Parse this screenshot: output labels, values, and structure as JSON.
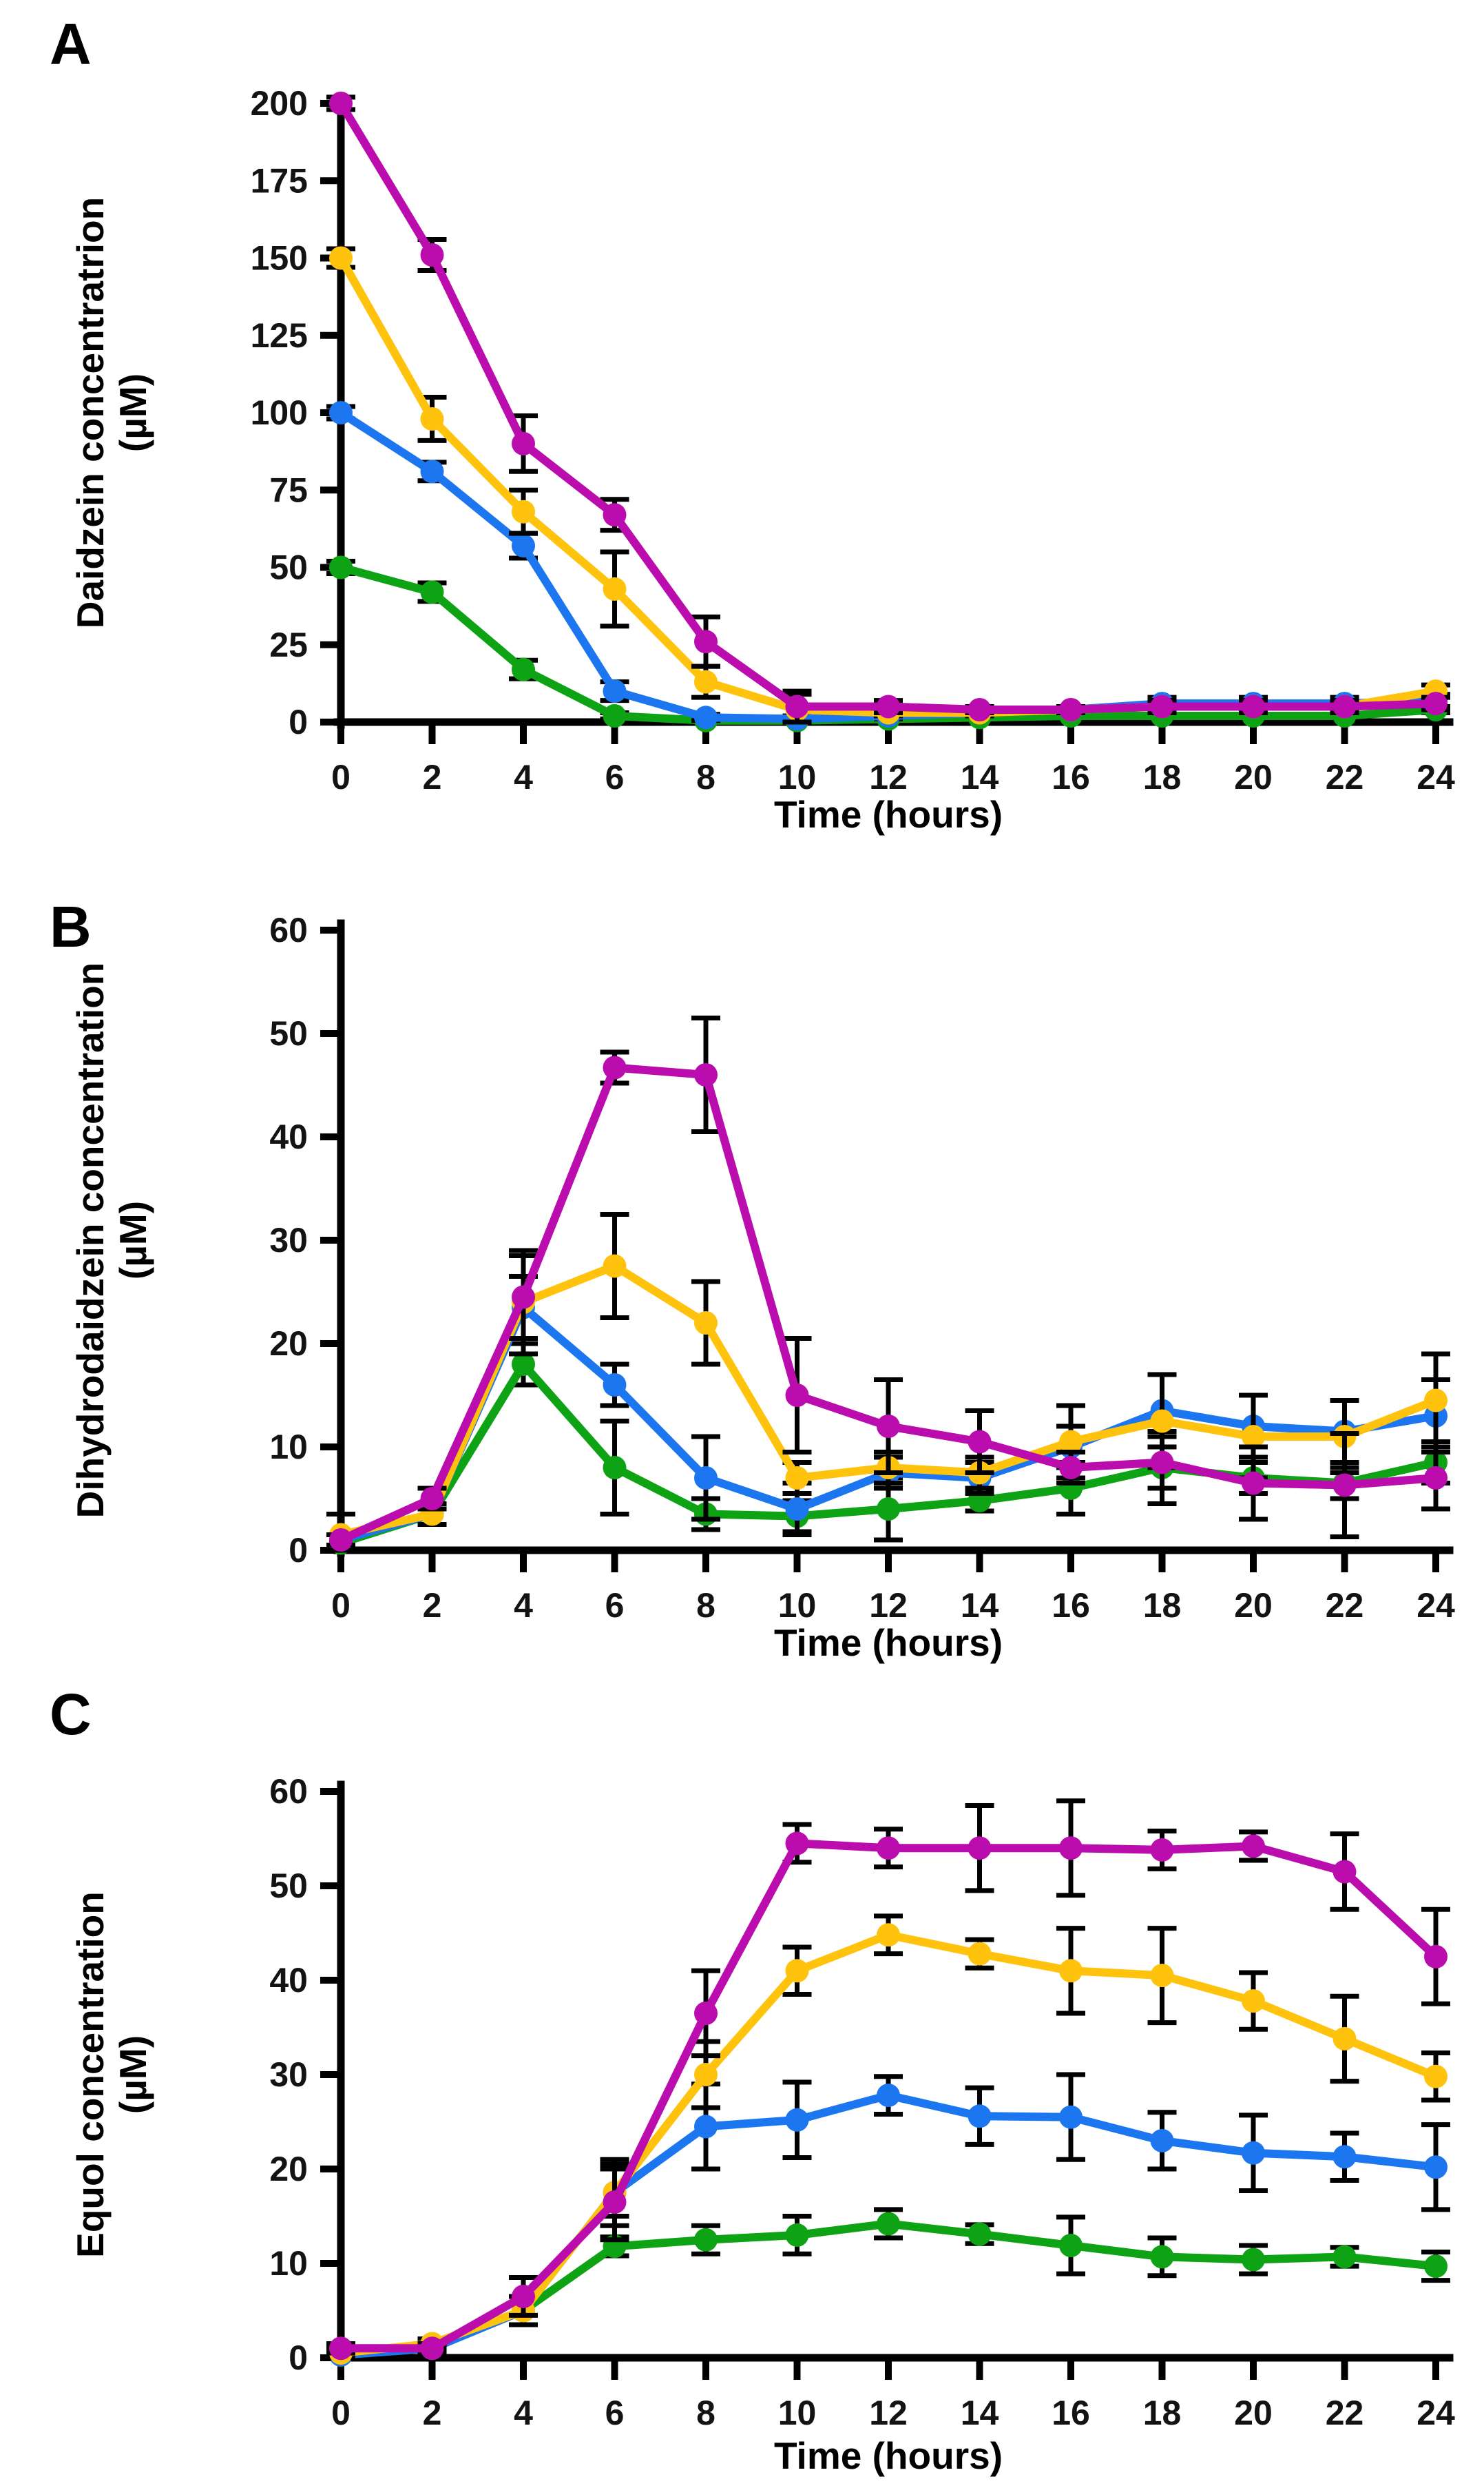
{
  "chart_data": [
    {
      "panel_letter": "A",
      "type": "line",
      "ylabel": "Daidzein concentratrion",
      "ylabel_unit": "(µM)",
      "xlabel": "Time (hours)",
      "x": [
        0,
        2,
        4,
        6,
        8,
        10,
        12,
        14,
        16,
        18,
        20,
        22,
        24
      ],
      "xlim": [
        0,
        24
      ],
      "xtick_step": 2,
      "ylim": [
        0,
        200
      ],
      "ytick_step": 25,
      "grid": false,
      "legend": "none",
      "series": [
        {
          "name": "green",
          "color": "#0DA314",
          "values": [
            50,
            42,
            17,
            2,
            0.5,
            0.5,
            1,
            1.5,
            2,
            2,
            2,
            2,
            4
          ],
          "errors": [
            2,
            3,
            3,
            1,
            0.5,
            0.5,
            0.5,
            0.5,
            1,
            1,
            1,
            1,
            1
          ]
        },
        {
          "name": "blue",
          "color": "#1C76F0",
          "values": [
            100,
            81,
            57,
            10,
            1.5,
            1,
            2,
            3,
            4,
            6,
            6,
            6,
            7
          ],
          "errors": [
            2,
            3,
            4,
            3,
            1,
            1,
            1,
            1,
            1,
            2,
            2,
            2,
            2
          ]
        },
        {
          "name": "yellow",
          "color": "#FFC30D",
          "values": [
            150,
            98,
            68,
            43,
            13,
            4,
            3,
            3,
            4,
            5,
            5,
            5,
            10
          ],
          "errors": [
            3,
            7,
            7,
            12,
            5,
            5,
            1,
            1,
            1,
            2,
            2,
            2,
            2
          ]
        },
        {
          "name": "magenta",
          "color": "#BB0CAE",
          "values": [
            200,
            151,
            90,
            67,
            26,
            5,
            5,
            4,
            4,
            5,
            5,
            5,
            6
          ],
          "errors": [
            2,
            5,
            9,
            5,
            8,
            5,
            2,
            1,
            1,
            2,
            2,
            2,
            2
          ]
        }
      ]
    },
    {
      "panel_letter": "B",
      "type": "line",
      "ylabel": "Dihydrodaidzein concentration",
      "ylabel_unit": "(µM)",
      "xlabel": "Time (hours)",
      "x": [
        0,
        2,
        4,
        6,
        8,
        10,
        12,
        14,
        16,
        18,
        20,
        22,
        24
      ],
      "xlim": [
        0,
        24
      ],
      "xtick_step": 2,
      "ylim": [
        0,
        60
      ],
      "ytick_step": 10,
      "grid": false,
      "legend": "none",
      "series": [
        {
          "name": "green",
          "color": "#0DA314",
          "values": [
            0.7,
            3.5,
            18,
            8,
            3.5,
            3.3,
            4,
            4.8,
            6,
            8,
            7,
            6.5,
            8.5
          ],
          "errors": [
            0.3,
            1,
            2,
            4.5,
            1.5,
            1.5,
            3,
            1,
            2.5,
            3.5,
            1.5,
            1.5,
            2
          ]
        },
        {
          "name": "blue",
          "color": "#1C76F0",
          "values": [
            1,
            3.5,
            23.5,
            16,
            7,
            4,
            7.5,
            7,
            10,
            13.5,
            12,
            11.5,
            13
          ],
          "errors": [
            0.5,
            1,
            3,
            2,
            4,
            2.5,
            1.5,
            1.5,
            2,
            3.5,
            3,
            3,
            3.5
          ]
        },
        {
          "name": "yellow",
          "color": "#FFC30D",
          "values": [
            1.5,
            3.5,
            24,
            27.5,
            22,
            7,
            8,
            7.5,
            10.5,
            12.5,
            11,
            11,
            14.5
          ],
          "errors": [
            2,
            1,
            5,
            5,
            4,
            1.5,
            1.5,
            1.5,
            3.5,
            4.5,
            4,
            3.5,
            4.5
          ]
        },
        {
          "name": "magenta",
          "color": "#BB0CAE",
          "values": [
            1,
            5,
            24.5,
            46.7,
            46,
            15,
            12,
            10.5,
            8,
            8.5,
            6.5,
            6.3,
            7
          ],
          "errors": [
            0.5,
            1,
            4,
            1.5,
            5.5,
            5.5,
            4.5,
            3,
            1.5,
            2.5,
            3.5,
            5,
            3
          ]
        }
      ]
    },
    {
      "panel_letter": "C",
      "type": "line",
      "ylabel": "Equol concentration",
      "ylabel_unit": "(µM)",
      "xlabel": "Time (hours)",
      "x": [
        0,
        2,
        4,
        6,
        8,
        10,
        12,
        14,
        16,
        18,
        20,
        22,
        24
      ],
      "xlim": [
        0,
        24
      ],
      "xtick_step": 2,
      "ylim": [
        0,
        60
      ],
      "ytick_step": 10,
      "grid": false,
      "legend": "none",
      "series": [
        {
          "name": "green",
          "color": "#0DA314",
          "values": [
            0.3,
            1,
            5,
            11.8,
            12.5,
            13,
            14.2,
            13.1,
            11.9,
            10.7,
            10.4,
            10.7,
            9.7
          ],
          "errors": [
            0.3,
            0.5,
            1.5,
            1,
            1.5,
            2,
            1.5,
            1,
            3,
            2,
            1.5,
            1,
            1.5
          ]
        },
        {
          "name": "blue",
          "color": "#1C76F0",
          "values": [
            0.3,
            1,
            5,
            17.5,
            24.5,
            25.2,
            27.8,
            25.6,
            25.5,
            23,
            21.7,
            21.3,
            20.2
          ],
          "errors": [
            0.3,
            0.5,
            1.5,
            3.5,
            4.5,
            4,
            2,
            3,
            4.5,
            3,
            4,
            2.5,
            4.5
          ]
        },
        {
          "name": "yellow",
          "color": "#FFC30D",
          "values": [
            0.5,
            1.5,
            5,
            17.5,
            30,
            41,
            44.8,
            42.8,
            41,
            40.5,
            37.8,
            33.8,
            29.8
          ],
          "errors": [
            0.5,
            0.5,
            1.5,
            2.5,
            3.5,
            2.5,
            2,
            1.5,
            4.5,
            5,
            3,
            4.5,
            2.5
          ]
        },
        {
          "name": "magenta",
          "color": "#BB0CAE",
          "values": [
            1,
            1,
            6.5,
            16.5,
            36.5,
            54.5,
            54,
            54,
            54,
            53.8,
            54.2,
            51.5,
            42.5
          ],
          "errors": [
            0.5,
            0.5,
            2,
            4,
            4.5,
            2,
            2,
            4.5,
            5,
            2,
            1.5,
            4,
            5
          ]
        }
      ]
    }
  ]
}
